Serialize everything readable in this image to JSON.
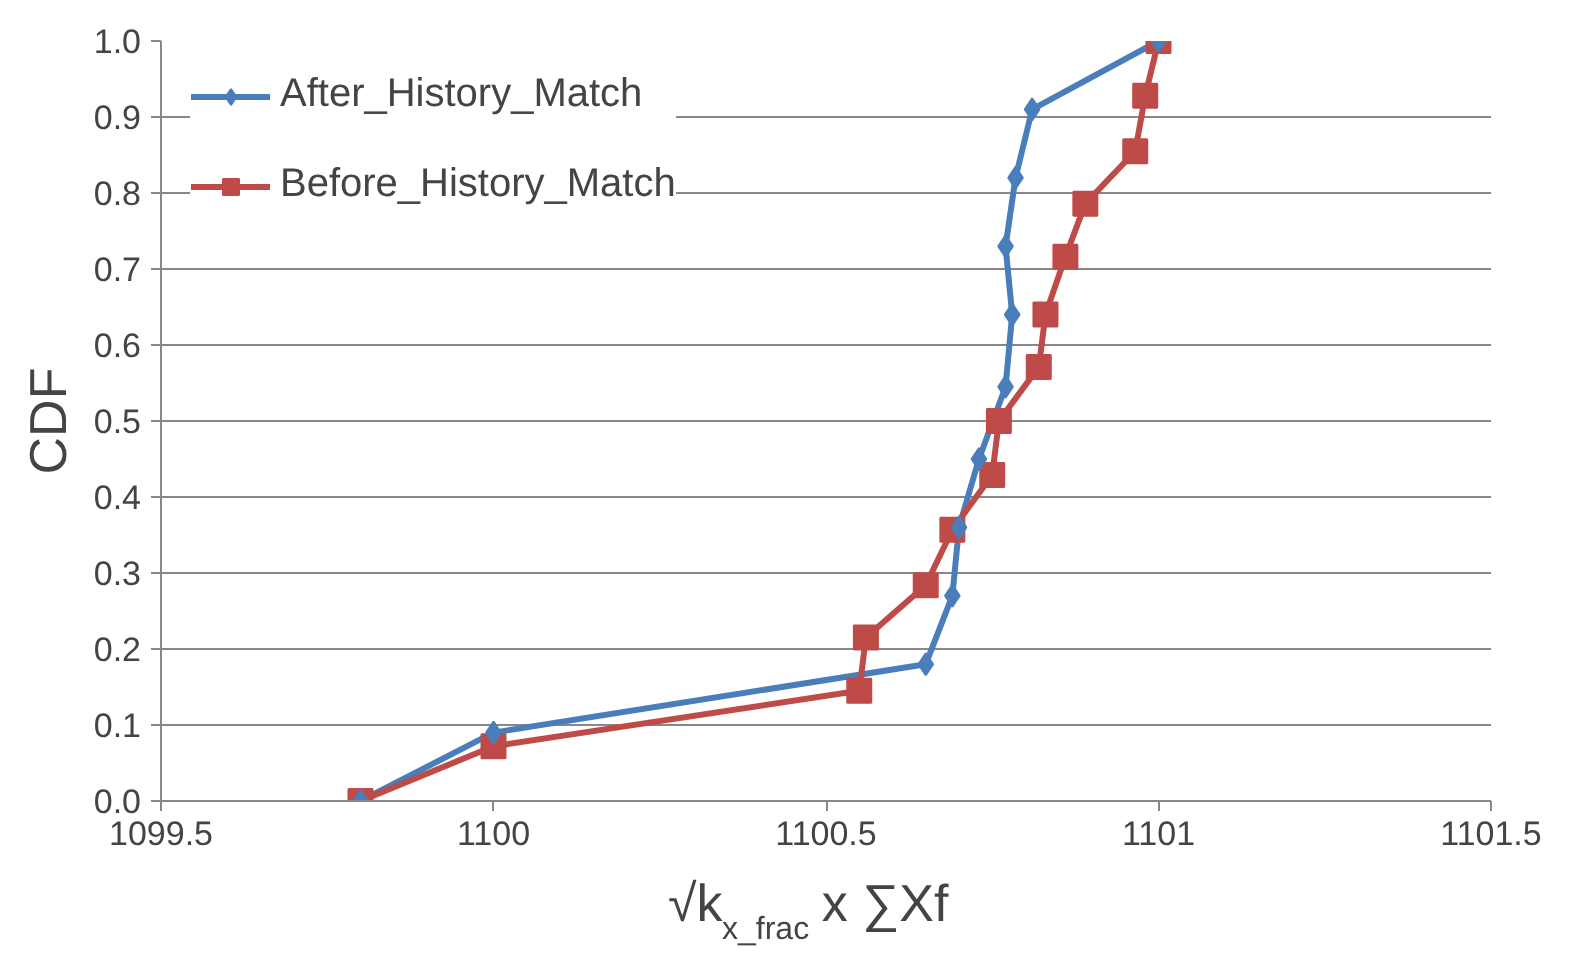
{
  "chart_data": {
    "type": "line",
    "xlabel": "√k$_{x_frac}$ x ∑Xf",
    "ylabel": "CDF",
    "xlim": [
      1099.5,
      1101.5
    ],
    "xticks": [
      1099.5,
      1100,
      1100.5,
      1101,
      1101.5
    ],
    "ylim": [
      0,
      1
    ],
    "yticks": [
      {
        "value": 0,
        "label": "0.0"
      },
      0.1,
      0.2,
      0.3,
      0.4,
      0.5,
      0.6,
      0.7,
      0.8,
      0.9,
      {
        "value": 1,
        "label": "1.0"
      }
    ],
    "grid": "y",
    "legend": "top left",
    "series": [
      {
        "name": "After_History_Match",
        "color": "#4a7ebb",
        "marker": "diamond",
        "x": [
          1099.8,
          1100,
          1100.65,
          1100.69,
          1100.7,
          1100.73,
          1100.77,
          1100.78,
          1100.77,
          1100.785,
          1100.81,
          1101
        ],
        "values": [
          0,
          0.09,
          0.18,
          0.27,
          0.36,
          0.45,
          0.545,
          0.64,
          0.73,
          0.82,
          0.91,
          1.0
        ]
      },
      {
        "name": "Before_History_Match",
        "color": "#be4b48",
        "marker": "square",
        "x": [
          1099.8,
          1100,
          1100.55,
          1100.56,
          1100.65,
          1100.69,
          1100.75,
          1100.76,
          1100.82,
          1100.83,
          1100.86,
          1100.89,
          1100.965,
          1100.98,
          1101
        ],
        "values": [
          0,
          0.072,
          0.145,
          0.215,
          0.284,
          0.357,
          0.429,
          0.5,
          0.571,
          0.64,
          0.716,
          0.786,
          0.855,
          0.928,
          1.0
        ]
      }
    ]
  }
}
